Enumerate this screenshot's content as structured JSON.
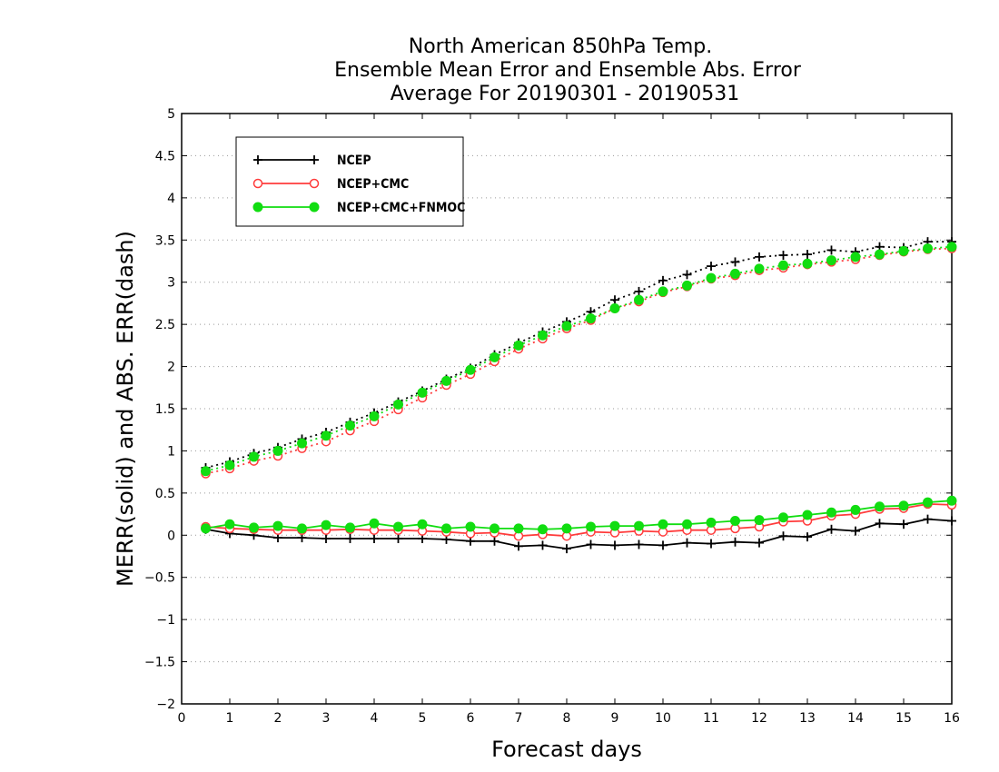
{
  "chart_data": {
    "type": "line",
    "title_lines": [
      "North American 850hPa Temp.",
      "Ensemble Mean Error and Ensemble Abs. Error",
      "Average For 20190301 - 20190531"
    ],
    "xlabel": "Forecast days",
    "ylabel": "MERR(solid) and ABS. ERR(dash)",
    "xlim": [
      0,
      16
    ],
    "ylim": [
      -2,
      5
    ],
    "x_ticks": [
      "0",
      "1",
      "2",
      "3",
      "4",
      "5",
      "6",
      "7",
      "8",
      "9",
      "10",
      "11",
      "12",
      "13",
      "14",
      "15",
      "16"
    ],
    "y_ticks": [
      "-2",
      "-1.5",
      "-1",
      "-0.5",
      "0",
      "0.5",
      "1",
      "1.5",
      "2",
      "2.5",
      "3",
      "3.5",
      "4",
      "4.5",
      "5"
    ],
    "grid": "horizontal dotted",
    "legend_position": "top-left",
    "x": [
      0.5,
      1,
      1.5,
      2,
      2.5,
      3,
      3.5,
      4,
      4.5,
      5,
      5.5,
      6,
      6.5,
      7,
      7.5,
      8,
      8.5,
      9,
      9.5,
      10,
      10.5,
      11,
      11.5,
      12,
      12.5,
      13,
      13.5,
      14,
      14.5,
      15,
      15.5,
      16
    ],
    "series": [
      {
        "name": "NCEP",
        "color": "#000000",
        "marker": "plus",
        "merr": [
          0.07,
          0.02,
          0.0,
          -0.03,
          -0.03,
          -0.04,
          -0.04,
          -0.04,
          -0.04,
          -0.04,
          -0.05,
          -0.07,
          -0.07,
          -0.13,
          -0.12,
          -0.16,
          -0.11,
          -0.12,
          -0.11,
          -0.12,
          -0.09,
          -0.1,
          -0.08,
          -0.09,
          -0.01,
          -0.02,
          0.07,
          0.05,
          0.14,
          0.13,
          0.19,
          0.17
        ],
        "abserr": [
          0.8,
          0.87,
          0.97,
          1.04,
          1.14,
          1.22,
          1.34,
          1.45,
          1.58,
          1.71,
          1.85,
          1.98,
          2.14,
          2.28,
          2.41,
          2.53,
          2.65,
          2.79,
          2.89,
          3.02,
          3.09,
          3.19,
          3.24,
          3.3,
          3.32,
          3.33,
          3.38,
          3.36,
          3.42,
          3.41,
          3.48,
          3.48
        ]
      },
      {
        "name": "NCEP+CMC",
        "color": "#ff3b3b",
        "marker": "open-circle",
        "merr": [
          0.1,
          0.08,
          0.07,
          0.06,
          0.06,
          0.06,
          0.07,
          0.06,
          0.06,
          0.05,
          0.04,
          0.02,
          0.03,
          -0.01,
          0.01,
          -0.01,
          0.04,
          0.03,
          0.05,
          0.04,
          0.06,
          0.06,
          0.08,
          0.1,
          0.16,
          0.17,
          0.23,
          0.25,
          0.31,
          0.32,
          0.37,
          0.36
        ],
        "abserr": [
          0.73,
          0.79,
          0.88,
          0.94,
          1.03,
          1.11,
          1.24,
          1.35,
          1.49,
          1.63,
          1.78,
          1.91,
          2.06,
          2.21,
          2.33,
          2.45,
          2.55,
          2.69,
          2.77,
          2.88,
          2.95,
          3.04,
          3.08,
          3.14,
          3.17,
          3.21,
          3.24,
          3.27,
          3.32,
          3.36,
          3.39,
          3.4
        ]
      },
      {
        "name": "NCEP+CMC+FNMOC",
        "color": "#11dd11",
        "marker": "filled-circle",
        "merr": [
          0.08,
          0.13,
          0.09,
          0.11,
          0.08,
          0.12,
          0.09,
          0.14,
          0.1,
          0.13,
          0.08,
          0.1,
          0.08,
          0.08,
          0.07,
          0.08,
          0.1,
          0.11,
          0.11,
          0.13,
          0.13,
          0.15,
          0.17,
          0.18,
          0.21,
          0.24,
          0.27,
          0.3,
          0.34,
          0.35,
          0.39,
          0.41
        ],
        "abserr": [
          0.76,
          0.83,
          0.93,
          1.0,
          1.09,
          1.18,
          1.3,
          1.41,
          1.55,
          1.69,
          1.83,
          1.96,
          2.11,
          2.25,
          2.37,
          2.48,
          2.57,
          2.69,
          2.79,
          2.89,
          2.96,
          3.05,
          3.1,
          3.16,
          3.2,
          3.22,
          3.26,
          3.3,
          3.33,
          3.37,
          3.4,
          3.42
        ]
      }
    ]
  }
}
